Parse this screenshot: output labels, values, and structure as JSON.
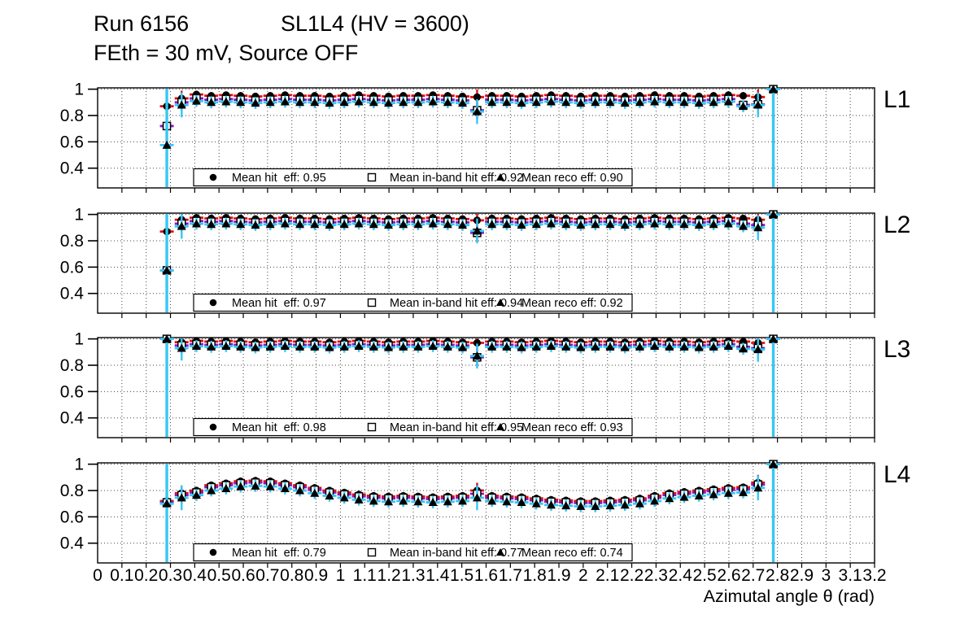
{
  "header": {
    "run": "Run 6156",
    "chamber": "SL1L4 (HV = 3600)",
    "conditions": "FEth = 30 mV, Source OFF"
  },
  "colors": {
    "hit_err": "#e01010",
    "inband_err": "#8a18c8",
    "reco_err": "#35c8f5",
    "marker": "#000000",
    "frame": "#000000",
    "grid": "#444444",
    "legend_bg": "#ffffff"
  },
  "chart_data": {
    "type": "scatter",
    "xlabel": "Azimutal angle θ (rad)",
    "xlim": [
      0,
      3.2
    ],
    "ylim": [
      0.25,
      1.01
    ],
    "grid": "dotted, vertical every 0.1 rad, horizontal every 0.2",
    "x_tick_labels": [
      "0",
      "0.1",
      "0.2",
      "0.3",
      "0.4",
      "0.5",
      "0.6",
      "0.7",
      "0.8",
      "0.9",
      "1",
      "1.1",
      "1.2",
      "1.3",
      "1.4",
      "1.5",
      "1.6",
      "1.7",
      "1.8",
      "1.9",
      "2",
      "2.1",
      "2.2",
      "2.3",
      "2.4",
      "2.5",
      "2.6",
      "2.7",
      "2.8",
      "2.9",
      "3",
      "3.1",
      "3.2"
    ],
    "y_tick_labels": [
      "0.4",
      "0.6",
      "0.8",
      "1"
    ],
    "y_tick_values": [
      0.4,
      0.6,
      0.8,
      1.0
    ],
    "series_style": [
      {
        "key": "hit",
        "marker": "filled-circle",
        "err_color_key": "hit_err",
        "err": 0.028
      },
      {
        "key": "inband",
        "marker": "open-square",
        "err_color_key": "inband_err",
        "err": 0.032
      },
      {
        "key": "reco",
        "marker": "filled-triangle",
        "err_color_key": "reco_err",
        "err": 0.045
      }
    ],
    "long_err_idx": [
      0,
      41
    ],
    "wide_err_idx": [
      1,
      21,
      40
    ],
    "x": [
      0.285,
      0.346,
      0.407,
      0.468,
      0.529,
      0.589,
      0.65,
      0.711,
      0.772,
      0.833,
      0.894,
      0.955,
      1.016,
      1.076,
      1.137,
      1.198,
      1.259,
      1.32,
      1.381,
      1.442,
      1.503,
      1.563,
      1.624,
      1.685,
      1.746,
      1.807,
      1.868,
      1.929,
      1.99,
      2.05,
      2.111,
      2.172,
      2.233,
      2.294,
      2.355,
      2.416,
      2.477,
      2.537,
      2.598,
      2.659,
      2.72,
      2.783
    ],
    "panels": [
      {
        "label": "L1",
        "legend": {
          "hit": "Mean hit  eff: 0.95",
          "inband": "Mean in-band hit eff: 0.92",
          "reco": "Mean reco eff: 0.90"
        },
        "series": {
          "hit": [
            0.87,
            0.93,
            0.96,
            0.95,
            0.955,
            0.95,
            0.945,
            0.95,
            0.955,
            0.95,
            0.95,
            0.945,
            0.95,
            0.955,
            0.95,
            0.945,
            0.95,
            0.95,
            0.955,
            0.95,
            0.945,
            0.94,
            0.95,
            0.95,
            0.945,
            0.95,
            0.955,
            0.95,
            0.945,
            0.95,
            0.95,
            0.945,
            0.95,
            0.955,
            0.95,
            0.95,
            0.945,
            0.95,
            0.955,
            0.95,
            0.94,
            1.0
          ],
          "inband": [
            0.72,
            0.9,
            0.93,
            0.92,
            0.925,
            0.92,
            0.915,
            0.92,
            0.925,
            0.92,
            0.92,
            0.915,
            0.92,
            0.925,
            0.92,
            0.915,
            0.92,
            0.92,
            0.925,
            0.92,
            0.915,
            0.84,
            0.92,
            0.92,
            0.915,
            0.92,
            0.925,
            0.92,
            0.915,
            0.92,
            0.92,
            0.915,
            0.92,
            0.925,
            0.92,
            0.92,
            0.915,
            0.92,
            0.925,
            0.88,
            0.885,
            1.0
          ],
          "reco": [
            0.575,
            0.88,
            0.91,
            0.9,
            0.905,
            0.9,
            0.895,
            0.9,
            0.905,
            0.9,
            0.9,
            0.895,
            0.9,
            0.905,
            0.9,
            0.895,
            0.9,
            0.9,
            0.905,
            0.9,
            0.895,
            0.83,
            0.9,
            0.9,
            0.895,
            0.9,
            0.905,
            0.9,
            0.895,
            0.9,
            0.9,
            0.895,
            0.9,
            0.905,
            0.9,
            0.9,
            0.895,
            0.9,
            0.905,
            0.87,
            0.88,
            1.0
          ]
        }
      },
      {
        "label": "L2",
        "legend": {
          "hit": "Mean hit  eff: 0.97",
          "inband": "Mean in-band hit eff: 0.94",
          "reco": "Mean reco eff: 0.92"
        },
        "series": {
          "hit": [
            0.87,
            0.96,
            0.975,
            0.97,
            0.975,
            0.97,
            0.965,
            0.97,
            0.975,
            0.97,
            0.97,
            0.965,
            0.97,
            0.975,
            0.97,
            0.965,
            0.97,
            0.97,
            0.975,
            0.97,
            0.965,
            0.955,
            0.97,
            0.97,
            0.965,
            0.97,
            0.975,
            0.97,
            0.965,
            0.97,
            0.97,
            0.965,
            0.97,
            0.975,
            0.97,
            0.97,
            0.965,
            0.97,
            0.975,
            0.97,
            0.96,
            1.0
          ],
          "inband": [
            0.575,
            0.93,
            0.95,
            0.945,
            0.95,
            0.945,
            0.94,
            0.945,
            0.95,
            0.945,
            0.945,
            0.94,
            0.945,
            0.95,
            0.945,
            0.94,
            0.945,
            0.945,
            0.95,
            0.945,
            0.94,
            0.86,
            0.945,
            0.945,
            0.94,
            0.945,
            0.95,
            0.945,
            0.94,
            0.945,
            0.945,
            0.94,
            0.945,
            0.95,
            0.945,
            0.945,
            0.94,
            0.945,
            0.95,
            0.93,
            0.92,
            1.0
          ],
          "reco": [
            0.575,
            0.91,
            0.93,
            0.925,
            0.93,
            0.925,
            0.92,
            0.925,
            0.93,
            0.925,
            0.925,
            0.92,
            0.925,
            0.93,
            0.925,
            0.92,
            0.925,
            0.925,
            0.93,
            0.925,
            0.92,
            0.875,
            0.925,
            0.925,
            0.92,
            0.925,
            0.93,
            0.925,
            0.92,
            0.925,
            0.925,
            0.92,
            0.925,
            0.93,
            0.925,
            0.925,
            0.92,
            0.925,
            0.93,
            0.91,
            0.9,
            1.0
          ]
        }
      },
      {
        "label": "L3",
        "legend": {
          "hit": "Mean hit  eff: 0.98",
          "inband": "Mean in-band hit eff: 0.95",
          "reco": "Mean reco eff: 0.93"
        },
        "series": {
          "hit": [
            1.0,
            0.975,
            0.985,
            0.98,
            0.985,
            0.98,
            0.975,
            0.98,
            0.985,
            0.98,
            0.98,
            0.975,
            0.98,
            0.985,
            0.98,
            0.975,
            0.98,
            0.98,
            0.985,
            0.98,
            0.975,
            0.97,
            0.98,
            0.98,
            0.975,
            0.98,
            0.985,
            0.98,
            0.975,
            0.98,
            0.98,
            0.975,
            0.98,
            0.985,
            0.98,
            0.98,
            0.975,
            0.98,
            0.985,
            0.98,
            0.97,
            1.0
          ],
          "inband": [
            1.0,
            0.95,
            0.96,
            0.955,
            0.96,
            0.955,
            0.95,
            0.955,
            0.96,
            0.955,
            0.955,
            0.95,
            0.955,
            0.96,
            0.955,
            0.95,
            0.955,
            0.955,
            0.96,
            0.955,
            0.95,
            0.86,
            0.955,
            0.955,
            0.95,
            0.955,
            0.96,
            0.955,
            0.95,
            0.955,
            0.955,
            0.95,
            0.955,
            0.96,
            0.955,
            0.955,
            0.95,
            0.955,
            0.96,
            0.94,
            0.93,
            1.0
          ],
          "reco": [
            1.0,
            0.93,
            0.945,
            0.94,
            0.945,
            0.94,
            0.935,
            0.94,
            0.945,
            0.94,
            0.94,
            0.935,
            0.94,
            0.945,
            0.94,
            0.935,
            0.94,
            0.94,
            0.945,
            0.94,
            0.935,
            0.87,
            0.94,
            0.94,
            0.935,
            0.94,
            0.945,
            0.94,
            0.935,
            0.94,
            0.94,
            0.935,
            0.94,
            0.945,
            0.94,
            0.94,
            0.935,
            0.94,
            0.945,
            0.925,
            0.92,
            1.0
          ]
        }
      },
      {
        "label": "L4",
        "legend": {
          "hit": "Mean hit  eff: 0.79",
          "inband": "Mean in-band hit eff: 0.77",
          "reco": "Mean reco eff: 0.74"
        },
        "series": {
          "hit": [
            0.72,
            0.78,
            0.8,
            0.84,
            0.855,
            0.87,
            0.875,
            0.87,
            0.855,
            0.84,
            0.82,
            0.8,
            0.785,
            0.77,
            0.76,
            0.755,
            0.76,
            0.755,
            0.75,
            0.755,
            0.76,
            0.8,
            0.76,
            0.755,
            0.75,
            0.74,
            0.73,
            0.725,
            0.72,
            0.72,
            0.725,
            0.73,
            0.74,
            0.76,
            0.78,
            0.79,
            0.8,
            0.81,
            0.82,
            0.825,
            0.86,
            1.0
          ],
          "inband": [
            0.71,
            0.765,
            0.785,
            0.825,
            0.84,
            0.855,
            0.86,
            0.855,
            0.84,
            0.825,
            0.805,
            0.785,
            0.77,
            0.755,
            0.745,
            0.74,
            0.745,
            0.74,
            0.735,
            0.74,
            0.745,
            0.775,
            0.745,
            0.74,
            0.735,
            0.725,
            0.715,
            0.71,
            0.705,
            0.705,
            0.71,
            0.715,
            0.725,
            0.745,
            0.765,
            0.775,
            0.785,
            0.795,
            0.805,
            0.81,
            0.845,
            1.0
          ],
          "reco": [
            0.7,
            0.745,
            0.765,
            0.8,
            0.815,
            0.83,
            0.835,
            0.83,
            0.815,
            0.8,
            0.78,
            0.76,
            0.745,
            0.73,
            0.72,
            0.715,
            0.72,
            0.715,
            0.71,
            0.715,
            0.72,
            0.745,
            0.72,
            0.715,
            0.71,
            0.7,
            0.69,
            0.685,
            0.68,
            0.68,
            0.685,
            0.69,
            0.7,
            0.72,
            0.74,
            0.75,
            0.76,
            0.77,
            0.78,
            0.785,
            0.82,
            1.0
          ]
        }
      }
    ]
  }
}
